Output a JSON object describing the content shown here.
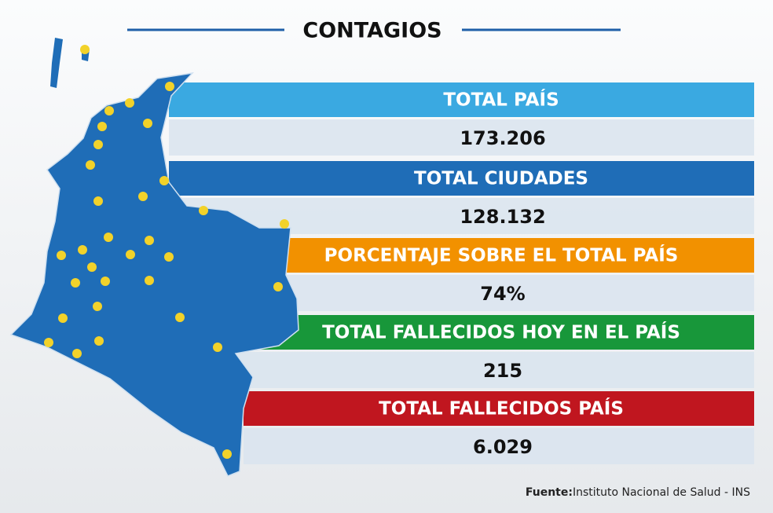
{
  "header": {
    "title": "CONTAGIOS"
  },
  "rows": [
    {
      "label": "TOTAL PAÍS",
      "value": "173.206"
    },
    {
      "label": "TOTAL CIUDADES",
      "value": "128.132"
    },
    {
      "label": "PORCENTAJE SOBRE EL TOTAL PAÍS",
      "value": "74%"
    },
    {
      "label": "TOTAL FALLECIDOS HOY EN EL PAÍS",
      "value": "215"
    },
    {
      "label": "TOTAL FALLECIDOS PAÍS",
      "value": "6.029"
    }
  ],
  "source": {
    "label": "Fuente:",
    "text": "Instituto Nacional de Salud - INS"
  }
}
